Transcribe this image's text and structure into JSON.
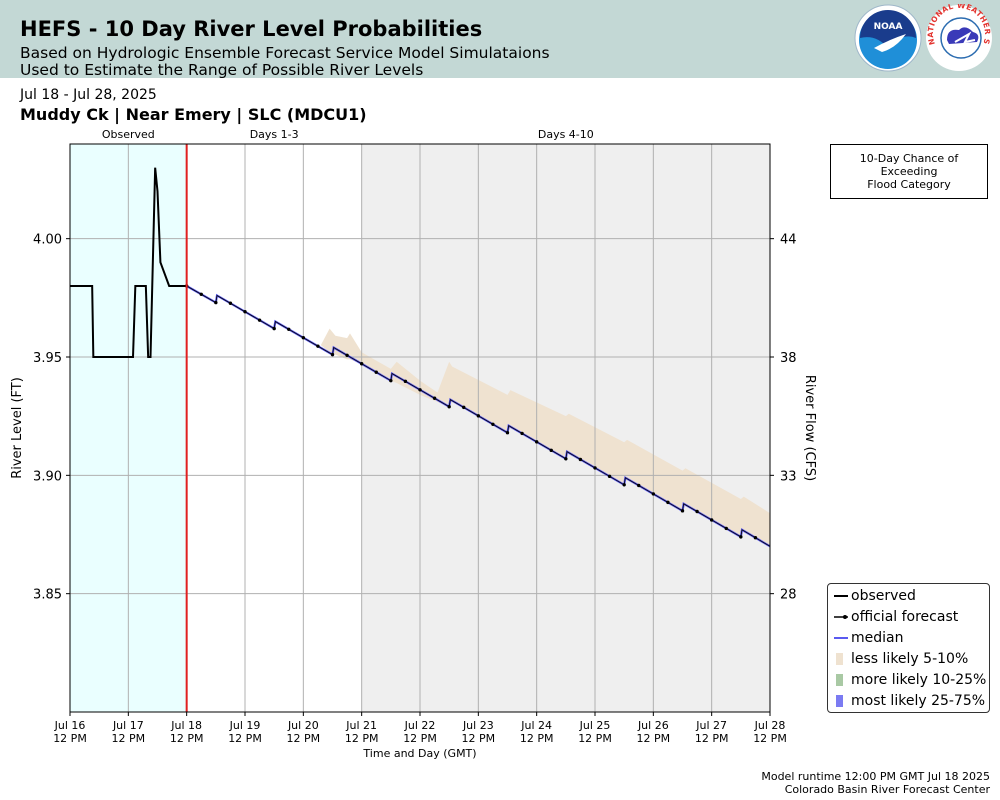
{
  "header": {
    "title": "HEFS - 10 Day River Level Probabilities",
    "subtitle_line1": "Based on Hydrologic Ensemble Forecast Service Model Simulataions",
    "subtitle_line2": "Used to Estimate the Range of Possible River Levels",
    "noaa_logo_text": "NOAA",
    "nws_logo_text": "NATIONAL WEATHER SERVICE"
  },
  "info": {
    "date_range": "Jul 18 - Jul 28, 2025",
    "location": "Muddy Ck | Near Emery | SLC (MDCU1)"
  },
  "flood_box": {
    "line1": "10-Day Chance of",
    "line2": "Exceeding",
    "line3": "Flood Category"
  },
  "legend": {
    "items": [
      {
        "label": "observed",
        "color": "#000000",
        "kind": "line"
      },
      {
        "label": "official forecast",
        "color": "#000000",
        "kind": "dotline"
      },
      {
        "label": "median",
        "color": "#5a5af0",
        "kind": "line"
      },
      {
        "label": "less likely 5-10%",
        "color": "#efe2d0",
        "kind": "patch"
      },
      {
        "label": "more likely 10-25%",
        "color": "#a9c9a4",
        "kind": "patch"
      },
      {
        "label": "most likely 25-75%",
        "color": "#7b7bf2",
        "kind": "patch"
      }
    ]
  },
  "footer": {
    "runtime": "Model runtime 12:00 PM GMT Jul 18 2025",
    "center": "Colorado Basin River Forecast Center"
  },
  "chart_data": {
    "type": "line",
    "xlabel": "Time and Day (GMT)",
    "ylabel": "River Level (FT)",
    "y2label": "River Flow (CFS)",
    "xlim": [
      0,
      12
    ],
    "ylim": [
      3.8,
      4.04
    ],
    "yticks": [
      3.85,
      3.9,
      3.95,
      4.0
    ],
    "ytick_labels": [
      "3.85",
      "3.90",
      "3.95",
      "4.00"
    ],
    "y2ticks": [
      {
        "level": 3.85,
        "label": "28"
      },
      {
        "level": 3.9,
        "label": "33"
      },
      {
        "level": 3.95,
        "label": "38"
      },
      {
        "level": 4.0,
        "label": "44"
      }
    ],
    "xtick_labels": [
      [
        "Jul 16",
        "12 PM"
      ],
      [
        "Jul 17",
        "12 PM"
      ],
      [
        "Jul 18",
        "12 PM"
      ],
      [
        "Jul 19",
        "12 PM"
      ],
      [
        "Jul 20",
        "12 PM"
      ],
      [
        "Jul 21",
        "12 PM"
      ],
      [
        "Jul 22",
        "12 PM"
      ],
      [
        "Jul 23",
        "12 PM"
      ],
      [
        "Jul 24",
        "12 PM"
      ],
      [
        "Jul 25",
        "12 PM"
      ],
      [
        "Jul 26",
        "12 PM"
      ],
      [
        "Jul 27",
        "12 PM"
      ],
      [
        "Jul 28",
        "12 PM"
      ]
    ],
    "periods": [
      {
        "label": "Observed",
        "start": 0,
        "end": 2
      },
      {
        "label": "Days 1-3",
        "start": 2,
        "end": 5
      },
      {
        "label": "Days 4-10",
        "start": 5,
        "end": 12
      }
    ],
    "forecast_start": 2,
    "grid": true,
    "legend_position": "right",
    "colors": {
      "observed_bg": "#eaffff",
      "days4_10_bg": "#efefef",
      "now_line": "#e02020",
      "observed": "#000000",
      "median": "#5a5af0",
      "band": "#efe2d0"
    },
    "series": [
      {
        "name": "observed",
        "x": [
          0,
          0.38,
          0.4,
          1.08,
          1.12,
          1.3,
          1.34,
          1.38,
          1.46,
          1.5,
          1.55,
          1.7,
          2.0
        ],
        "y": [
          3.98,
          3.98,
          3.95,
          3.95,
          3.98,
          3.98,
          3.95,
          3.95,
          4.03,
          4.02,
          3.99,
          3.98,
          3.98
        ]
      },
      {
        "name": "official forecast",
        "x": [
          2.0,
          2.5,
          2.52,
          3.5,
          3.52,
          4.5,
          4.52,
          5.5,
          5.52,
          6.5,
          6.52,
          7.5,
          7.52,
          8.5,
          8.52,
          9.5,
          9.52,
          10.5,
          10.52,
          11.5,
          11.52,
          12.0
        ],
        "y": [
          3.98,
          3.973,
          3.976,
          3.962,
          3.965,
          3.951,
          3.954,
          3.94,
          3.943,
          3.929,
          3.932,
          3.918,
          3.921,
          3.907,
          3.91,
          3.896,
          3.899,
          3.885,
          3.888,
          3.874,
          3.877,
          3.87
        ]
      },
      {
        "name": "median",
        "x": [
          2.0,
          2.5,
          2.52,
          3.5,
          3.52,
          4.5,
          4.52,
          5.5,
          5.52,
          6.5,
          6.52,
          7.5,
          7.52,
          8.5,
          8.52,
          9.5,
          9.52,
          10.5,
          10.52,
          11.5,
          11.52,
          12.0
        ],
        "y": [
          3.98,
          3.973,
          3.976,
          3.962,
          3.965,
          3.951,
          3.954,
          3.94,
          3.943,
          3.929,
          3.932,
          3.918,
          3.921,
          3.907,
          3.91,
          3.896,
          3.899,
          3.885,
          3.888,
          3.874,
          3.877,
          3.87
        ]
      },
      {
        "name": "less likely 5-10%",
        "x": [
          4.3,
          4.45,
          4.55,
          4.75,
          4.8,
          5.0,
          5.5,
          5.6,
          6.0,
          6.3,
          6.5,
          6.55,
          7.5,
          7.55,
          8.5,
          8.55,
          9.5,
          9.55,
          10.5,
          10.55,
          11.5,
          11.55,
          12.0
        ],
        "y_upper": [
          3.955,
          3.962,
          3.959,
          3.958,
          3.96,
          3.952,
          3.945,
          3.948,
          3.94,
          3.935,
          3.948,
          3.946,
          3.934,
          3.936,
          3.925,
          3.926,
          3.914,
          3.915,
          3.902,
          3.903,
          3.89,
          3.891,
          3.884
        ],
        "y_lower": [
          3.955,
          3.952,
          3.951,
          3.949,
          3.949,
          3.947,
          3.94,
          3.939,
          3.934,
          3.931,
          3.929,
          3.931,
          3.918,
          3.92,
          3.907,
          3.909,
          3.896,
          3.898,
          3.885,
          3.887,
          3.874,
          3.876,
          3.87
        ]
      }
    ]
  }
}
